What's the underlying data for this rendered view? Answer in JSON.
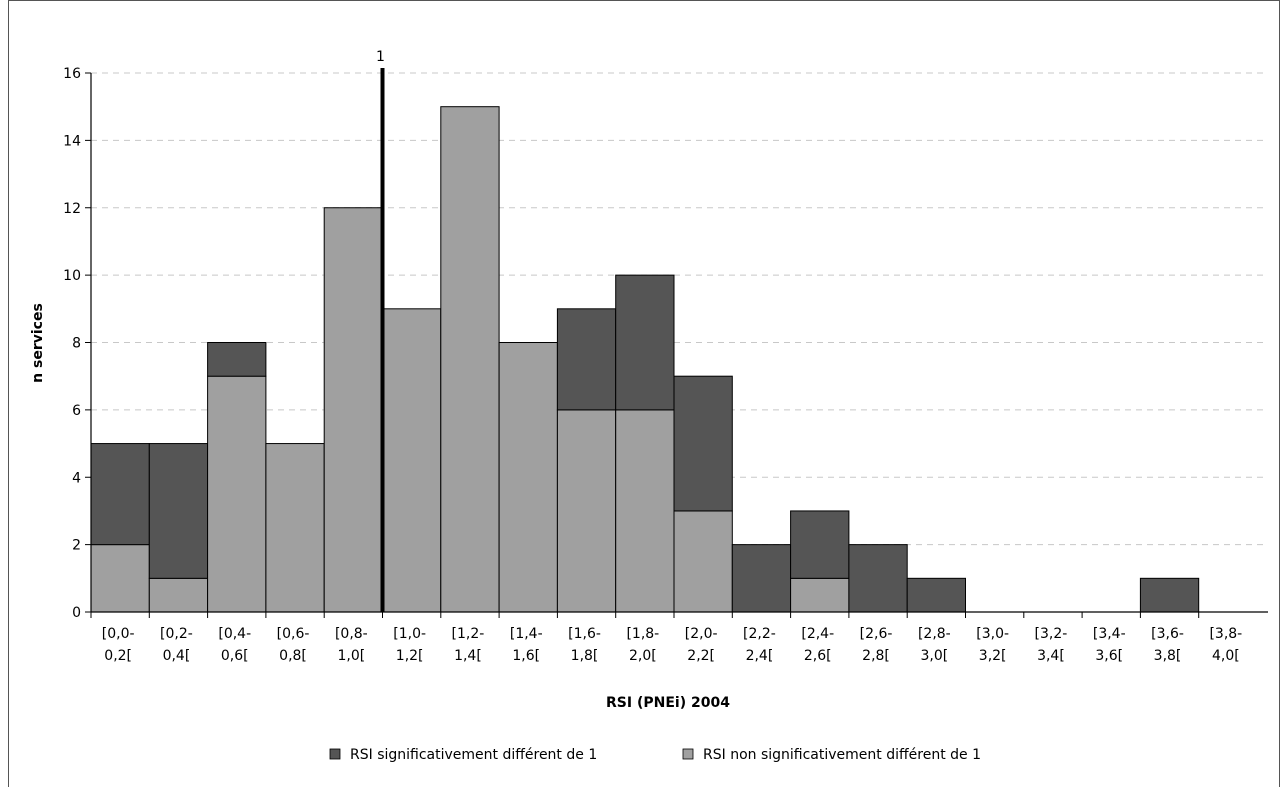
{
  "chart_data": {
    "type": "bar",
    "stacked": true,
    "xlabel": "RSI (PNEi)  2004",
    "ylabel": "n services",
    "ylim": [
      0,
      16
    ],
    "yticks": [
      0,
      2,
      4,
      6,
      8,
      10,
      12,
      14,
      16
    ],
    "grid": "horizontal dashed",
    "legend_position": "bottom",
    "categories": [
      [
        "[0,0-",
        "0,2["
      ],
      [
        "[0,2-",
        "0,4["
      ],
      [
        "[0,4-",
        "0,6["
      ],
      [
        "[0,6-",
        "0,8["
      ],
      [
        "[0,8-",
        "1,0["
      ],
      [
        "[1,0-",
        "1,2["
      ],
      [
        "[1,2-",
        "1,4["
      ],
      [
        "[1,4-",
        "1,6["
      ],
      [
        "[1,6-",
        "1,8["
      ],
      [
        "[1,8-",
        "2,0["
      ],
      [
        "[2,0-",
        "2,2["
      ],
      [
        "[2,2-",
        "2,4["
      ],
      [
        "[2,4-",
        "2,6["
      ],
      [
        "[2,6-",
        "2,8["
      ],
      [
        "[2,8-",
        "3,0["
      ],
      [
        "[3,0-",
        "3,2["
      ],
      [
        "[3,2-",
        "3,4["
      ],
      [
        "[3,4-",
        "3,6["
      ],
      [
        "[3,6-",
        "3,8["
      ],
      [
        "[3,8-",
        "4,0["
      ]
    ],
    "series": [
      {
        "name": "RSI non significativement différent de 1",
        "color": "#a0a0a0",
        "values": [
          2,
          1,
          7,
          5,
          12,
          9,
          15,
          8,
          6,
          6,
          3,
          0,
          1,
          0,
          0,
          0,
          0,
          0,
          0,
          0
        ]
      },
      {
        "name": "RSI significativement différent de 1",
        "color": "#555555",
        "values": [
          3,
          4,
          1,
          0,
          0,
          0,
          0,
          0,
          3,
          4,
          4,
          2,
          2,
          2,
          1,
          0,
          0,
          0,
          1,
          0
        ]
      }
    ],
    "reference_line": {
      "x_value": 1,
      "label": "1"
    },
    "legend_order": [
      "RSI significativement différent de 1",
      "RSI non significativement différent de 1"
    ]
  }
}
